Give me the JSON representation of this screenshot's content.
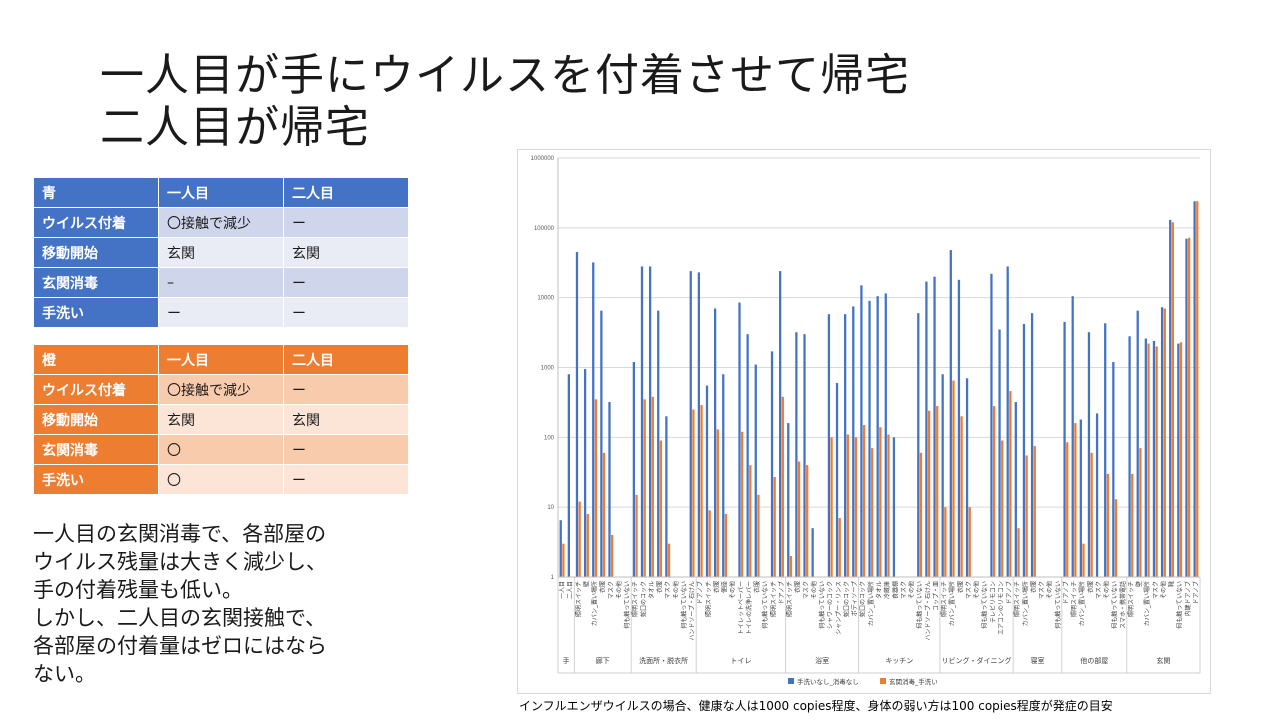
{
  "slide": {
    "title_line1": "一人目が手にウイルスを付着させて帰宅",
    "title_line2": "二人目が帰宅",
    "summary": [
      "一人目の玄関消毒で、各部屋の",
      "ウイルス残量は大きく減少し、",
      "手の付着残量も低い。",
      "しかし、二人目の玄関接触で、",
      "各部屋の付着量はゼロにはなら",
      "ない。"
    ],
    "footnote": "インフルエンザウイルスの場合、健康な人は1000 copies程度、身体の弱い方は100 copies程度が発症の目安"
  },
  "table_blue": {
    "header": [
      "青",
      "一人目",
      "二人目"
    ],
    "rows": [
      [
        "ウイルス付着",
        "〇接触で減少",
        "ー"
      ],
      [
        "移動開始",
        "玄関",
        "玄関"
      ],
      [
        "玄関消毒",
        "–",
        "ー"
      ],
      [
        "手洗い",
        "ー",
        "ー"
      ]
    ]
  },
  "table_orange": {
    "header": [
      "橙",
      "一人目",
      "二人目"
    ],
    "rows": [
      [
        "ウイルス付着",
        "〇接触で減少",
        "ー"
      ],
      [
        "移動開始",
        "玄関",
        "玄関"
      ],
      [
        "玄関消毒",
        "〇",
        "ー"
      ],
      [
        "手洗い",
        "〇",
        "ー"
      ]
    ]
  },
  "chart_data": {
    "type": "bar",
    "scale": "log",
    "ylim": [
      1,
      1000000
    ],
    "y_ticks": [
      "1",
      "10",
      "100",
      "1000",
      "10000",
      "100000",
      "1000000"
    ],
    "colors": {
      "blue": "#4472c4",
      "orange": "#ed7d31"
    },
    "legend": [
      "手洗いなし_消毒なし",
      "玄関消毒_手洗い"
    ],
    "legend_position": "bottom",
    "groups": [
      {
        "name": "手",
        "items": [
          "一人目",
          "二人目"
        ],
        "blue": [
          6.5,
          800
        ],
        "orange": [
          3,
          1
        ]
      },
      {
        "name": "廊下",
        "items": [
          "照明スイッチ",
          "壁",
          "カバン_置い場所",
          "衣服",
          "マスク",
          "その他",
          "何も触っていない"
        ],
        "blue": [
          45000,
          950,
          32000,
          6500,
          320,
          1,
          1
        ],
        "orange": [
          12,
          8,
          350,
          60,
          4,
          1,
          1
        ]
      },
      {
        "name": "洗面所・脱衣所",
        "items": [
          "照明スイッチ",
          "蛇口のコック",
          "タオル",
          "衣服",
          "マスク",
          "その他",
          "何も触っていない",
          "ハンドソープ・石けん"
        ],
        "blue": [
          1200,
          28000,
          28000,
          6500,
          200,
          1,
          1,
          24000
        ],
        "orange": [
          15,
          350,
          380,
          90,
          3,
          1,
          1,
          250
        ]
      },
      {
        "name": "トイレ",
        "items": [
          "ドアノブ",
          "照明スイッチ",
          "衣服",
          "便座",
          "その他",
          "トイレットペーパー",
          "トイレの洗浄レバー",
          "衣服",
          "何も触っていない",
          "照明スイッチ",
          "ドアノブ"
        ],
        "blue": [
          23000,
          550,
          7000,
          800,
          1,
          8500,
          3000,
          1100,
          1,
          1700,
          24000
        ],
        "orange": [
          290,
          9,
          130,
          8,
          1,
          120,
          40,
          15,
          1,
          27,
          380
        ]
      },
      {
        "name": "浴室",
        "items": [
          "照明スイッチ",
          "衣服",
          "マスク",
          "その他",
          "何も触っていない",
          "シャワーのコック",
          "シャンプー・リンス",
          "蛇口のコック",
          "ボディソープ"
        ],
        "blue": [
          160,
          3200,
          3000,
          5,
          1,
          5800,
          600,
          5800,
          7500
        ],
        "orange": [
          2,
          45,
          40,
          1,
          1,
          100,
          7,
          110,
          100
        ]
      },
      {
        "name": "キッチン",
        "items": [
          "蛇口のコック",
          "カバン_置い場所",
          "タオル",
          "冷蔵庫",
          "食器棚",
          "マスク",
          "その他",
          "何も触っていない",
          "ハンドソープ・石けん",
          "コップ・皿"
        ],
        "blue": [
          15000,
          9000,
          10500,
          11500,
          100,
          1,
          1,
          6000,
          17000,
          20000
        ],
        "orange": [
          150,
          70,
          140,
          110,
          1,
          1,
          1,
          60,
          240,
          280
        ]
      },
      {
        "name": "リビング・ダイニング",
        "items": [
          "照明スイッチ",
          "カバン_置い場所",
          "衣服",
          "マスク",
          "その他",
          "何も触っていない",
          "テレビリモコン",
          "エアコンのリモコン",
          "ドアノブ"
        ],
        "blue": [
          800,
          48000,
          18000,
          700,
          1,
          1,
          22000,
          3500,
          28000
        ],
        "orange": [
          10,
          650,
          200,
          10,
          1,
          1,
          280,
          90,
          460
        ]
      },
      {
        "name": "寝室",
        "items": [
          "照明スイッチ",
          "カバン_置い場所",
          "衣服",
          "マスク",
          "その他",
          "何も触っていない"
        ],
        "blue": [
          320,
          4200,
          6000,
          1,
          1,
          1
        ],
        "orange": [
          5,
          55,
          75,
          1,
          1,
          1
        ]
      },
      {
        "name": "他の部屋",
        "items": [
          "ドアノブ",
          "照明スイッチ",
          "カバン_置い場所",
          "衣服",
          "マスク",
          "その他",
          "何も触っていない",
          "スマホ・携帯電話"
        ],
        "blue": [
          4500,
          10500,
          180,
          3200,
          220,
          4300,
          1200,
          1
        ],
        "orange": [
          85,
          160,
          3,
          60,
          1,
          30,
          13,
          1
        ]
      },
      {
        "name": "玄関",
        "items": [
          "照明スイッチ",
          "壁",
          "カバン_置い場所",
          "マスク",
          "その他",
          "靴",
          "何も触っていない",
          "内鍵ドアノブ",
          "ドアノブ"
        ],
        "blue": [
          2800,
          6500,
          2600,
          2400,
          7300,
          130000,
          2200,
          70000,
          240000
        ],
        "orange": [
          30,
          70,
          2200,
          2000,
          7000,
          120000,
          2300,
          72000,
          240000
        ]
      }
    ]
  }
}
